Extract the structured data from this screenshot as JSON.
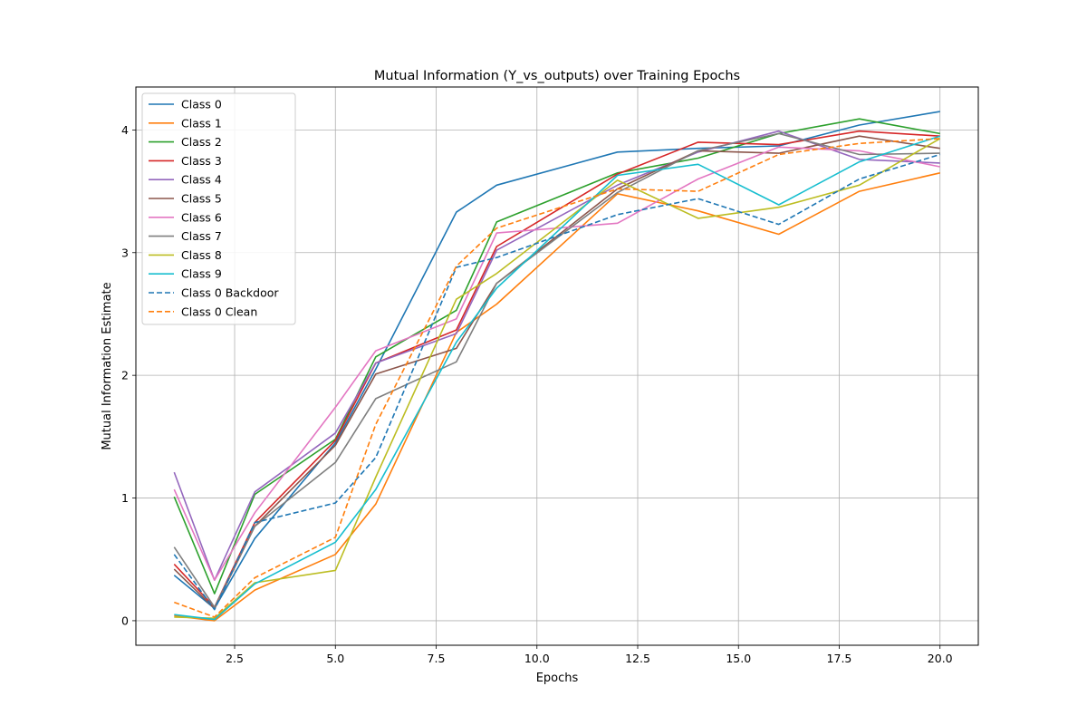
{
  "chart_data": {
    "type": "line",
    "title": "Mutual Information (Y_vs_outputs) over Training Epochs",
    "xlabel": "Epochs",
    "ylabel": "Mutual Information Estimate",
    "xlim": [
      0.05,
      20.95
    ],
    "ylim": [
      -0.2,
      4.35
    ],
    "xticks": [
      2.5,
      5.0,
      7.5,
      10.0,
      12.5,
      15.0,
      17.5,
      20.0
    ],
    "xtick_labels": [
      "2.5",
      "5.0",
      "7.5",
      "10.0",
      "12.5",
      "15.0",
      "17.5",
      "20.0"
    ],
    "yticks": [
      0,
      1,
      2,
      3,
      4
    ],
    "ytick_labels": [
      "0",
      "1",
      "2",
      "3",
      "4"
    ],
    "grid": true,
    "legend_position": "upper-left",
    "x": [
      1,
      2,
      3,
      5,
      6,
      8,
      9,
      12,
      14,
      16,
      18,
      20
    ],
    "series": [
      {
        "name": "Class 0",
        "color": "#1f77b4",
        "dash": "solid",
        "values": [
          0.37,
          0.1,
          0.67,
          1.45,
          2.05,
          3.33,
          3.55,
          3.82,
          3.85,
          3.87,
          4.04,
          4.15
        ]
      },
      {
        "name": "Class 1",
        "color": "#ff7f0e",
        "dash": "solid",
        "values": [
          0.04,
          0.0,
          0.25,
          0.54,
          0.95,
          2.35,
          2.58,
          3.48,
          3.34,
          3.15,
          3.5,
          3.65
        ]
      },
      {
        "name": "Class 2",
        "color": "#2ca02c",
        "dash": "solid",
        "values": [
          1.01,
          0.22,
          1.03,
          1.48,
          2.15,
          2.53,
          3.25,
          3.65,
          3.77,
          3.97,
          4.09,
          3.97
        ]
      },
      {
        "name": "Class 3",
        "color": "#d62728",
        "dash": "solid",
        "values": [
          0.46,
          0.11,
          0.8,
          1.47,
          2.1,
          2.37,
          3.05,
          3.64,
          3.9,
          3.88,
          3.99,
          3.95
        ]
      },
      {
        "name": "Class 4",
        "color": "#9467bd",
        "dash": "solid",
        "values": [
          1.21,
          0.33,
          1.05,
          1.53,
          2.1,
          2.34,
          3.02,
          3.55,
          3.82,
          3.99,
          3.76,
          3.73
        ]
      },
      {
        "name": "Class 5",
        "color": "#8c564b",
        "dash": "solid",
        "values": [
          0.42,
          0.1,
          0.77,
          1.43,
          2.01,
          2.22,
          2.75,
          3.52,
          3.83,
          3.81,
          3.95,
          3.85
        ]
      },
      {
        "name": "Class 6",
        "color": "#e377c2",
        "dash": "solid",
        "values": [
          1.07,
          0.33,
          0.88,
          1.74,
          2.2,
          2.46,
          3.16,
          3.24,
          3.6,
          3.86,
          3.83,
          3.7
        ]
      },
      {
        "name": "Class 7",
        "color": "#7f7f7f",
        "dash": "solid",
        "values": [
          0.6,
          0.11,
          0.77,
          1.29,
          1.81,
          2.11,
          2.75,
          3.49,
          3.83,
          3.97,
          3.8,
          3.81
        ]
      },
      {
        "name": "Class 8",
        "color": "#bcbd22",
        "dash": "solid",
        "values": [
          0.03,
          0.02,
          0.31,
          0.41,
          1.17,
          2.62,
          2.83,
          3.59,
          3.28,
          3.37,
          3.55,
          3.93
        ]
      },
      {
        "name": "Class 9",
        "color": "#17becf",
        "dash": "solid",
        "values": [
          0.05,
          0.01,
          0.3,
          0.64,
          1.07,
          2.27,
          2.71,
          3.63,
          3.72,
          3.39,
          3.74,
          3.95
        ]
      },
      {
        "name": "Class 0 Backdoor",
        "color": "#1f77b4",
        "dash": "dashed",
        "values": [
          0.54,
          0.09,
          0.8,
          0.96,
          1.33,
          2.88,
          2.96,
          3.31,
          3.44,
          3.23,
          3.6,
          3.8
        ]
      },
      {
        "name": "Class 0 Clean",
        "color": "#ff7f0e",
        "dash": "dashed",
        "values": [
          0.15,
          0.03,
          0.35,
          0.68,
          1.6,
          2.89,
          3.2,
          3.52,
          3.5,
          3.8,
          3.89,
          3.93
        ]
      }
    ]
  }
}
